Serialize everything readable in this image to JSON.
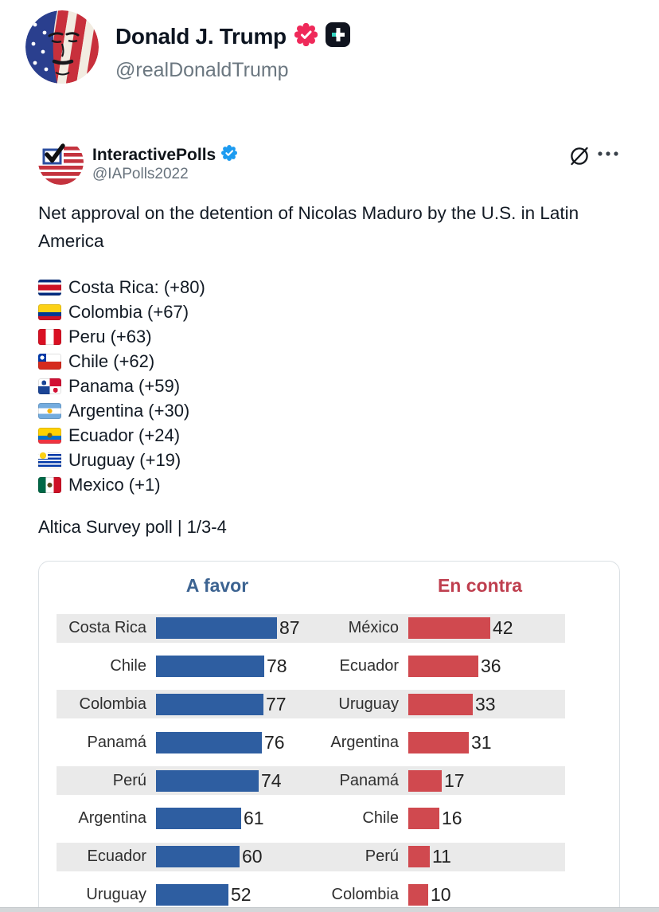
{
  "post": {
    "author_name": "Donald J. Trump",
    "author_handle": "@realDonaldTrump",
    "badges": [
      "verified-seal",
      "truth-plus"
    ]
  },
  "quoted_tweet": {
    "author_name": "InteractivePolls",
    "author_handle": "@IAPolls2022",
    "verified": true,
    "body": "Net approval on the detention of Nicolas Maduro by the U.S. in Latin America",
    "countries": [
      {
        "flag": "costa-rica",
        "label": "Costa Rica: (+80)"
      },
      {
        "flag": "colombia",
        "label": "Colombia (+67)"
      },
      {
        "flag": "peru",
        "label": "Peru (+63)"
      },
      {
        "flag": "chile",
        "label": "Chile (+62)"
      },
      {
        "flag": "panama",
        "label": "Panama (+59)"
      },
      {
        "flag": "argentina",
        "label": "Argentina (+30)"
      },
      {
        "flag": "ecuador",
        "label": "Ecuador (+24)"
      },
      {
        "flag": "uruguay",
        "label": "Uruguay (+19)"
      },
      {
        "flag": "mexico",
        "label": "Mexico (+1)"
      }
    ],
    "source_line": "Altica Survey poll | 1/3-4"
  },
  "chart_data": {
    "type": "bar",
    "orientation": "horizontal",
    "panels": [
      {
        "header": "A favor",
        "header_color": "#3c6391",
        "bar_color": "#2e5ea1",
        "rows": [
          {
            "label": "Costa Rica",
            "value": 87
          },
          {
            "label": "Chile",
            "value": 78
          },
          {
            "label": "Colombia",
            "value": 77
          },
          {
            "label": "Panamá",
            "value": 76
          },
          {
            "label": "Perú",
            "value": 74
          },
          {
            "label": "Argentina",
            "value": 61
          },
          {
            "label": "Ecuador",
            "value": 60
          },
          {
            "label": "Uruguay",
            "value": 52
          }
        ]
      },
      {
        "header": "En contra",
        "header_color": "#bf3f4f",
        "bar_color": "#d0494f",
        "rows": [
          {
            "label": "México",
            "value": 42
          },
          {
            "label": "Ecuador",
            "value": 36
          },
          {
            "label": "Uruguay",
            "value": 33
          },
          {
            "label": "Argentina",
            "value": 31
          },
          {
            "label": "Panamá",
            "value": 17
          },
          {
            "label": "Chile",
            "value": 16
          },
          {
            "label": "Perú",
            "value": 11
          },
          {
            "label": "Colombia",
            "value": 10
          }
        ]
      }
    ],
    "value_range": [
      0,
      100
    ],
    "grid": false
  }
}
